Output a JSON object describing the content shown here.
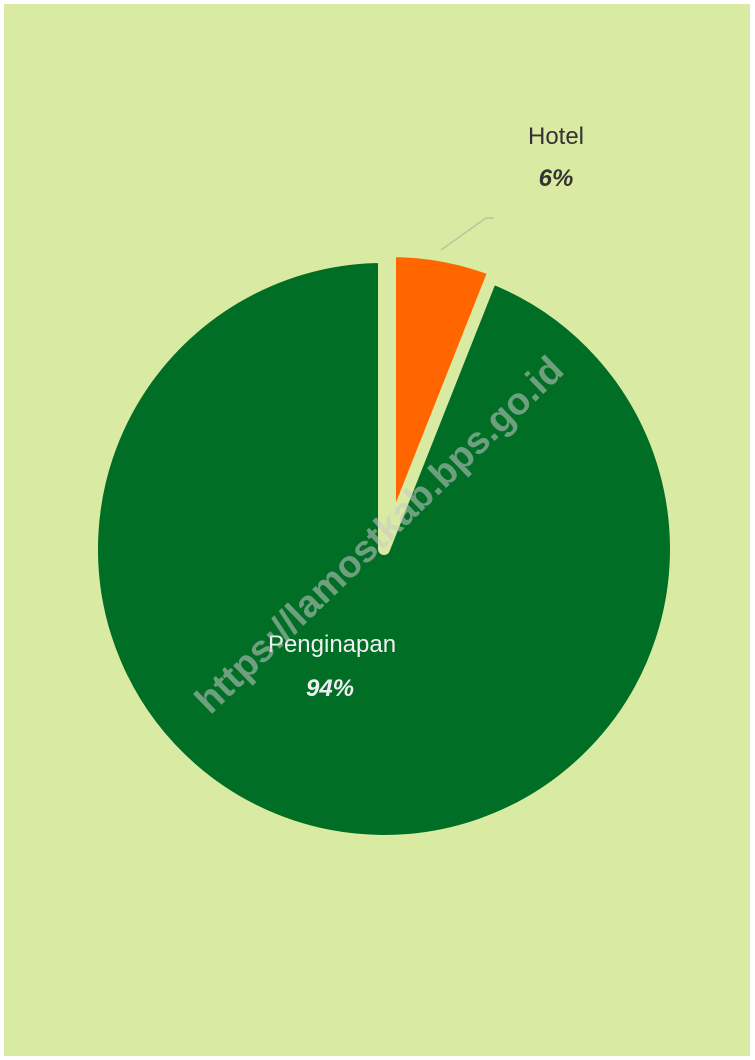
{
  "chart_data": {
    "type": "pie",
    "slices": [
      {
        "label": "Hotel",
        "value": 6,
        "pct_label": "6%",
        "color": "#ff6600"
      },
      {
        "label": "Penginapan",
        "value": 94,
        "pct_label": "94%",
        "color": "#006e25"
      }
    ]
  },
  "colors": {
    "background": "#d9eba3",
    "hotel": "#ff6600",
    "penginapan": "#006e25"
  },
  "watermark": "https://lamostkab.bps.go.id"
}
